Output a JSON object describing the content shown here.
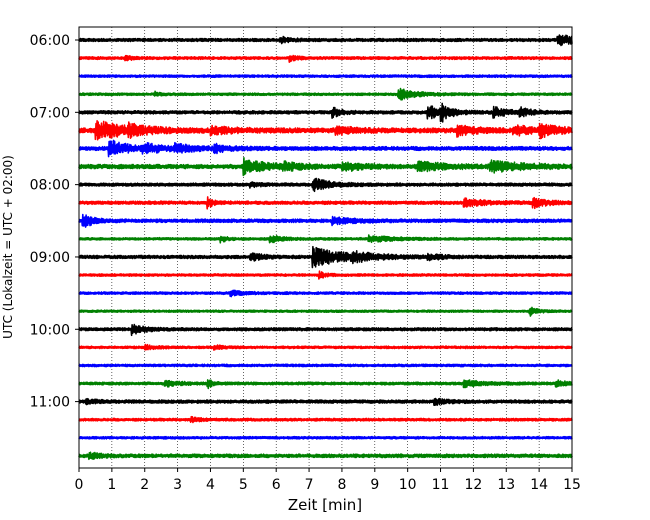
{
  "chart_data": {
    "type": "line",
    "subtype": "helicorder-seismogram",
    "xlabel": "Zeit  [min]",
    "ylabel": "UTC (Lokalzeit = UTC + 02:00)",
    "xlim": [
      0,
      15
    ],
    "x_ticks": [
      "0",
      "1",
      "2",
      "3",
      "4",
      "5",
      "6",
      "7",
      "8",
      "9",
      "10",
      "11",
      "12",
      "13",
      "14",
      "15"
    ],
    "y_tick_labels": [
      "06:00",
      "07:00",
      "08:00",
      "09:00",
      "10:00",
      "11:00"
    ],
    "grid": {
      "x": "dotted-vertical",
      "y": false
    },
    "trace_interval_minutes": 15,
    "trace_start_times": [
      "06:00",
      "06:15",
      "06:30",
      "06:45",
      "07:00",
      "07:15",
      "07:30",
      "07:45",
      "08:00",
      "08:15",
      "08:30",
      "08:45",
      "09:00",
      "09:15",
      "09:30",
      "09:45",
      "10:00",
      "10:15",
      "10:30",
      "10:45",
      "11:00",
      "11:15",
      "11:30",
      "11:45"
    ],
    "trace_colors": [
      "#000000",
      "#ff0000",
      "#0000ff",
      "#008000"
    ],
    "traces": [
      {
        "time": "06:00",
        "color": "#000000",
        "noise": 0.28,
        "events": [
          {
            "t": 6.1,
            "a": 0.6,
            "d": 0.3
          },
          {
            "t": 14.55,
            "a": 1.25,
            "d": 0.45
          }
        ]
      },
      {
        "time": "06:15",
        "color": "#ff0000",
        "noise": 0.25,
        "events": [
          {
            "t": 1.4,
            "a": 0.45,
            "d": 0.2
          },
          {
            "t": 6.4,
            "a": 0.55,
            "d": 0.2
          }
        ]
      },
      {
        "time": "06:30",
        "color": "#0000ff",
        "noise": 0.22,
        "events": []
      },
      {
        "time": "06:45",
        "color": "#008000",
        "noise": 0.22,
        "events": [
          {
            "t": 9.7,
            "a": 1.1,
            "d": 0.5
          },
          {
            "t": 2.3,
            "a": 0.4,
            "d": 0.2
          }
        ]
      },
      {
        "time": "07:00",
        "color": "#000000",
        "noise": 0.3,
        "events": [
          {
            "t": 7.7,
            "a": 0.9,
            "d": 0.25
          },
          {
            "t": 10.6,
            "a": 1.2,
            "d": 0.5
          },
          {
            "t": 11.0,
            "a": 1.4,
            "d": 0.25
          },
          {
            "t": 12.6,
            "a": 1.0,
            "d": 0.4
          },
          {
            "t": 13.4,
            "a": 0.8,
            "d": 0.3
          }
        ]
      },
      {
        "time": "07:15",
        "color": "#ff0000",
        "noise": 0.45,
        "events": [
          {
            "t": 0.5,
            "a": 1.7,
            "d": 0.9
          },
          {
            "t": 1.5,
            "a": 0.7,
            "d": 0.5
          },
          {
            "t": 4.0,
            "a": 0.6,
            "d": 0.6
          },
          {
            "t": 7.8,
            "a": 0.7,
            "d": 0.5
          },
          {
            "t": 11.5,
            "a": 0.9,
            "d": 0.5
          },
          {
            "t": 13.2,
            "a": 0.8,
            "d": 0.6
          },
          {
            "t": 14.0,
            "a": 1.0,
            "d": 0.5
          }
        ]
      },
      {
        "time": "07:30",
        "color": "#0000ff",
        "noise": 0.35,
        "events": [
          {
            "t": 0.9,
            "a": 1.7,
            "d": 0.5
          },
          {
            "t": 1.9,
            "a": 0.8,
            "d": 0.7
          },
          {
            "t": 2.9,
            "a": 0.6,
            "d": 0.6
          },
          {
            "t": 4.1,
            "a": 0.7,
            "d": 0.4
          }
        ]
      },
      {
        "time": "07:45",
        "color": "#008000",
        "noise": 0.4,
        "events": [
          {
            "t": 5.0,
            "a": 1.5,
            "d": 0.6
          },
          {
            "t": 6.2,
            "a": 0.6,
            "d": 0.5
          },
          {
            "t": 8.0,
            "a": 0.8,
            "d": 0.6
          },
          {
            "t": 10.3,
            "a": 0.8,
            "d": 0.8
          },
          {
            "t": 12.5,
            "a": 0.9,
            "d": 1.0
          }
        ]
      },
      {
        "time": "08:00",
        "color": "#000000",
        "noise": 0.28,
        "events": [
          {
            "t": 7.1,
            "a": 1.2,
            "d": 0.5
          },
          {
            "t": 5.2,
            "a": 0.4,
            "d": 0.3
          }
        ]
      },
      {
        "time": "08:15",
        "color": "#ff0000",
        "noise": 0.3,
        "events": [
          {
            "t": 3.9,
            "a": 1.0,
            "d": 0.15
          },
          {
            "t": 11.7,
            "a": 0.7,
            "d": 0.6
          },
          {
            "t": 13.8,
            "a": 0.9,
            "d": 0.4
          }
        ]
      },
      {
        "time": "08:30",
        "color": "#0000ff",
        "noise": 0.32,
        "events": [
          {
            "t": 0.1,
            "a": 1.6,
            "d": 0.25
          },
          {
            "t": 7.7,
            "a": 0.6,
            "d": 0.6
          }
        ]
      },
      {
        "time": "08:45",
        "color": "#008000",
        "noise": 0.22,
        "events": [
          {
            "t": 4.3,
            "a": 0.6,
            "d": 0.2
          },
          {
            "t": 5.8,
            "a": 0.8,
            "d": 0.3
          },
          {
            "t": 8.8,
            "a": 0.6,
            "d": 0.7
          }
        ]
      },
      {
        "time": "09:00",
        "color": "#000000",
        "noise": 0.3,
        "events": [
          {
            "t": 5.2,
            "a": 0.7,
            "d": 0.4
          },
          {
            "t": 7.1,
            "a": 1.9,
            "d": 0.9
          },
          {
            "t": 8.3,
            "a": 0.6,
            "d": 0.7
          },
          {
            "t": 10.6,
            "a": 0.5,
            "d": 0.4
          }
        ]
      },
      {
        "time": "09:15",
        "color": "#ff0000",
        "noise": 0.22,
        "events": [
          {
            "t": 7.3,
            "a": 0.6,
            "d": 0.2
          }
        ]
      },
      {
        "time": "09:30",
        "color": "#0000ff",
        "noise": 0.22,
        "events": [
          {
            "t": 4.6,
            "a": 0.5,
            "d": 0.4
          }
        ]
      },
      {
        "time": "09:45",
        "color": "#008000",
        "noise": 0.2,
        "events": [
          {
            "t": 13.7,
            "a": 0.9,
            "d": 0.2
          }
        ]
      },
      {
        "time": "10:00",
        "color": "#000000",
        "noise": 0.28,
        "events": [
          {
            "t": 1.6,
            "a": 0.9,
            "d": 0.4
          }
        ]
      },
      {
        "time": "10:15",
        "color": "#ff0000",
        "noise": 0.22,
        "events": [
          {
            "t": 2.0,
            "a": 0.4,
            "d": 0.3
          },
          {
            "t": 4.1,
            "a": 0.5,
            "d": 0.2
          }
        ]
      },
      {
        "time": "10:30",
        "color": "#0000ff",
        "noise": 0.22,
        "events": []
      },
      {
        "time": "10:45",
        "color": "#008000",
        "noise": 0.25,
        "events": [
          {
            "t": 2.6,
            "a": 0.6,
            "d": 0.4
          },
          {
            "t": 3.9,
            "a": 1.0,
            "d": 0.15
          },
          {
            "t": 11.7,
            "a": 0.7,
            "d": 0.5
          },
          {
            "t": 14.5,
            "a": 0.6,
            "d": 0.3
          }
        ]
      },
      {
        "time": "11:00",
        "color": "#000000",
        "noise": 0.3,
        "events": [
          {
            "t": 10.8,
            "a": 0.6,
            "d": 0.3
          },
          {
            "t": 0.2,
            "a": 0.4,
            "d": 0.3
          }
        ]
      },
      {
        "time": "11:15",
        "color": "#ff0000",
        "noise": 0.24,
        "events": [
          {
            "t": 3.4,
            "a": 0.4,
            "d": 0.3
          }
        ]
      },
      {
        "time": "11:30",
        "color": "#0000ff",
        "noise": 0.22,
        "events": []
      },
      {
        "time": "11:45",
        "color": "#008000",
        "noise": 0.32,
        "events": [
          {
            "t": 0.3,
            "a": 0.6,
            "d": 0.3
          }
        ]
      }
    ]
  }
}
